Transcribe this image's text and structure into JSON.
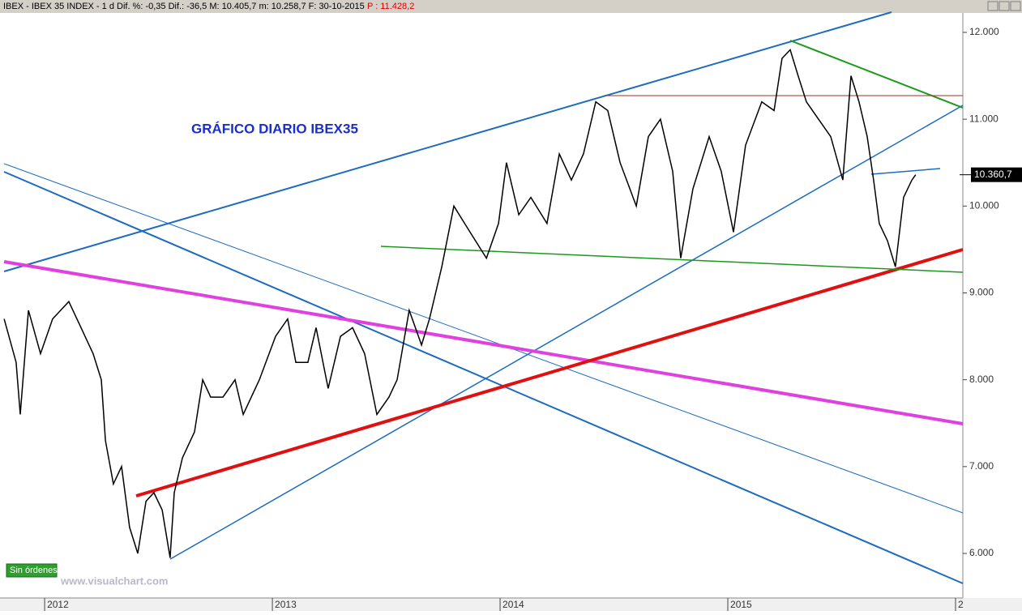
{
  "header": {
    "text": "IBEX - IBEX 35 INDEX - 1 d Dif. %: -0,35 Dif.: -36,5 M: 10.405,7 m: 10.258,7 F: 30-10-2015",
    "price": "P : 11.428,2"
  },
  "status": "Sin órdenes",
  "watermark": "www.visualchart.com",
  "chart_data": {
    "type": "line",
    "title": "GRÁFICO DIARIO IBEX35",
    "x": [
      2011.822,
      2011.875,
      2011.893,
      2011.929,
      2011.982,
      2012.035,
      2012.106,
      2012.16,
      2012.213,
      2012.249,
      2012.267,
      2012.302,
      2012.338,
      2012.373,
      2012.409,
      2012.445,
      2012.48,
      2012.516,
      2012.551,
      2012.569,
      2012.605,
      2012.658,
      2012.694,
      2012.729,
      2012.783,
      2012.836,
      2012.872,
      2012.943,
      2013.014,
      2013.067,
      2013.103,
      2013.156,
      2013.192,
      2013.245,
      2013.299,
      2013.352,
      2013.405,
      2013.459,
      2013.512,
      2013.548,
      2013.601,
      2013.655,
      2013.69,
      2013.744,
      2013.797,
      2013.868,
      2013.94,
      2013.993,
      2014.028,
      2014.082,
      2014.135,
      2014.206,
      2014.26,
      2014.313,
      2014.366,
      2014.42,
      2014.473,
      2014.527,
      2014.598,
      2014.651,
      2014.704,
      2014.758,
      2014.793,
      2014.847,
      2014.918,
      2014.971,
      2015.025,
      2015.078,
      2015.149,
      2015.203,
      2015.238,
      2015.274,
      2015.309,
      2015.345,
      2015.398,
      2015.452,
      2015.505,
      2015.541,
      2015.576,
      2015.612,
      2015.64,
      2015.665,
      2015.701,
      2015.736,
      2015.772,
      2015.808,
      2015.825
    ],
    "series": [
      {
        "name": "IBEX",
        "color": "#000000",
        "values": [
          8700,
          8200,
          7600,
          8800,
          8300,
          8700,
          8900,
          8600,
          8300,
          8000,
          7300,
          6800,
          7000,
          6300,
          6000,
          6600,
          6700,
          6500,
          5950,
          6700,
          7100,
          7400,
          8000,
          7800,
          7800,
          8000,
          7600,
          8000,
          8500,
          8700,
          8200,
          8200,
          8600,
          7900,
          8500,
          8600,
          8300,
          7600,
          7800,
          8000,
          8800,
          8400,
          8700,
          9300,
          10000,
          9700,
          9400,
          9800,
          10500,
          9900,
          10100,
          9800,
          10600,
          10300,
          10600,
          11200,
          11100,
          10500,
          10000,
          10800,
          11000,
          10400,
          9400,
          10200,
          10800,
          10400,
          9700,
          10700,
          11200,
          11100,
          11700,
          11800,
          11500,
          11200,
          11000,
          10800,
          10300,
          11500,
          11200,
          10800,
          10300,
          9800,
          9600,
          9300,
          10100,
          10300,
          10360.7
        ]
      }
    ],
    "last_value": {
      "value": 10360.7,
      "label": "10.360,7"
    },
    "xlim": [
      2011.804,
      2016.032
    ],
    "xticks": [
      2012,
      2013,
      2014,
      2015,
      {
        "value": 2016,
        "label": "2"
      }
    ],
    "ylim": [
      5487,
      12233
    ],
    "yticks": [
      {
        "value": 6000,
        "label": "6.000"
      },
      {
        "value": 7000,
        "label": "7.000"
      },
      {
        "value": 8000,
        "label": "8.000"
      },
      {
        "value": 9000,
        "label": "9.000"
      },
      {
        "value": 10000,
        "label": "10.000"
      },
      {
        "value": 11000,
        "label": "11.000"
      },
      {
        "value": 12000,
        "label": "12.000"
      }
    ]
  }
}
